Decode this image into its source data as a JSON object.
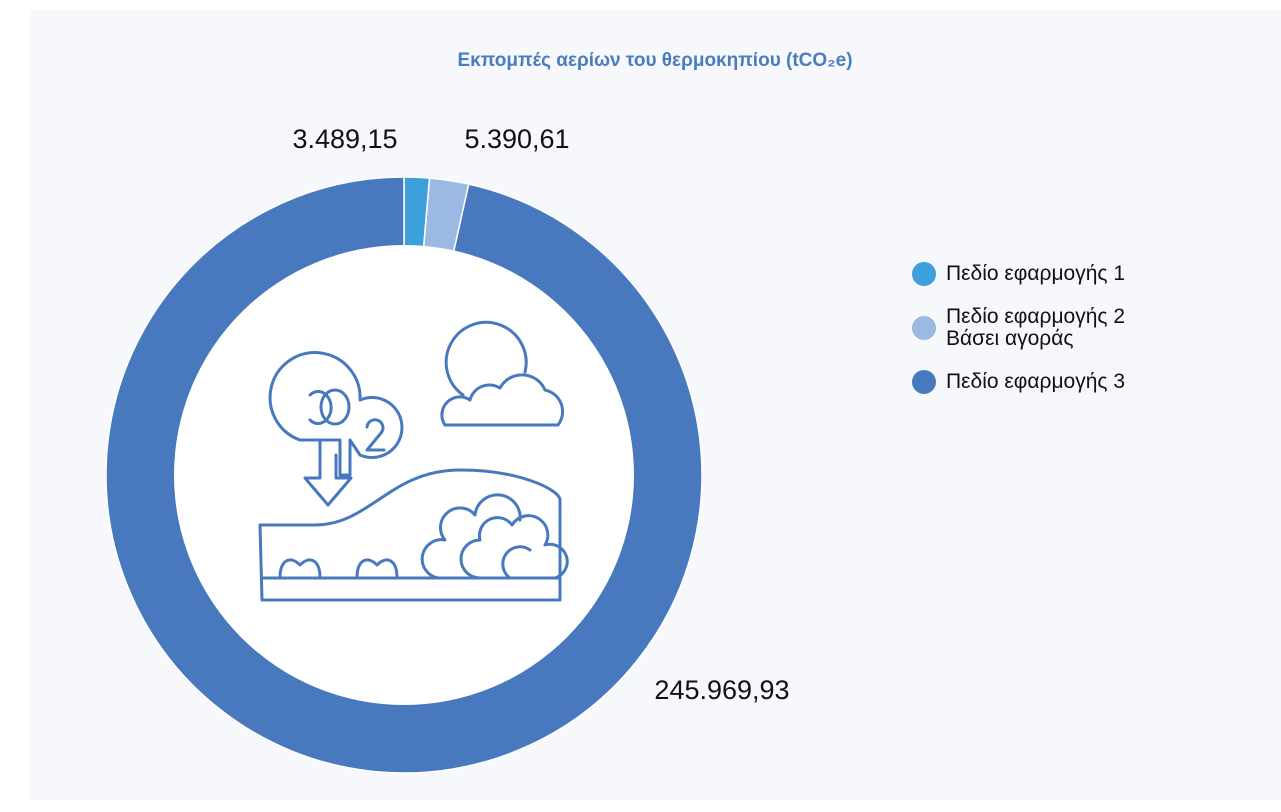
{
  "chart_data": {
    "type": "donut",
    "title": "Εκπομπές αερίων του θερμοκηπίου (tCO₂e)",
    "categories": [
      "Πεδίο εφαρμογής 1",
      "Πεδίο εφαρμογής 2\nΒάσει αγοράς",
      "Πεδίο εφαρμογής 3"
    ],
    "values": [
      3489.15,
      5390.61,
      245969.93
    ],
    "value_labels": [
      "3.489,15",
      "5.390,61",
      "245.969,93"
    ],
    "colors": [
      "#3d9fdc",
      "#9bb9e2",
      "#4878bd"
    ],
    "legend": "right"
  }
}
